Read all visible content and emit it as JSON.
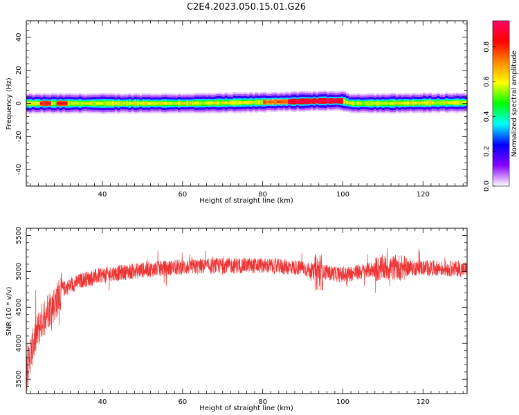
{
  "title": "C2E4.2023.050.15.01.G26",
  "chart_data": [
    {
      "type": "heatmap",
      "xlabel": "Height of straight line (km)",
      "ylabel": "Frequency (Hz)",
      "xlim": [
        21,
        131
      ],
      "ylim": [
        -50,
        50
      ],
      "xticks": [
        40,
        60,
        80,
        100,
        120
      ],
      "yticks": [
        -40,
        -20,
        0,
        20,
        40
      ],
      "band_center": [
        [
          21,
          0
        ],
        [
          40,
          0
        ],
        [
          60,
          0
        ],
        [
          75,
          0.5
        ],
        [
          85,
          1
        ],
        [
          95,
          1.5
        ],
        [
          100,
          1.5
        ],
        [
          102,
          0
        ],
        [
          110,
          0
        ],
        [
          120,
          0.3
        ],
        [
          131,
          0.5
        ]
      ],
      "colorbar": {
        "label": "Normalized spectral amplitude",
        "range": [
          0,
          0.95
        ],
        "ticks": [
          "0.0",
          "0.2",
          "0.4",
          "0.6",
          "0.8"
        ],
        "colors": [
          "#ffffff",
          "#8800ff",
          "#0000ff",
          "#00ffff",
          "#00ff00",
          "#ffff00",
          "#ff8800",
          "#ff0000",
          "#ff0066"
        ]
      }
    },
    {
      "type": "line",
      "xlabel": "Height of straight line (km)",
      "ylabel": "SNR (10 * v/v)",
      "xlim": [
        21,
        131
      ],
      "ylim": [
        3300,
        5600
      ],
      "xticks": [
        40,
        60,
        80,
        100,
        120
      ],
      "yticks": [
        3500,
        4000,
        4500,
        5000,
        5500
      ],
      "color": "#ee3333",
      "trend": [
        [
          21,
          3550
        ],
        [
          22,
          3850
        ],
        [
          24,
          4200
        ],
        [
          26,
          4450
        ],
        [
          28,
          4550
        ],
        [
          30,
          4750
        ],
        [
          35,
          4880
        ],
        [
          40,
          4950
        ],
        [
          50,
          5020
        ],
        [
          60,
          5060
        ],
        [
          70,
          5080
        ],
        [
          80,
          5080
        ],
        [
          90,
          5050
        ],
        [
          93,
          4980
        ],
        [
          94,
          5000
        ],
        [
          100,
          4950
        ],
        [
          110,
          5050
        ],
        [
          120,
          5050
        ],
        [
          131,
          5030
        ]
      ]
    }
  ]
}
